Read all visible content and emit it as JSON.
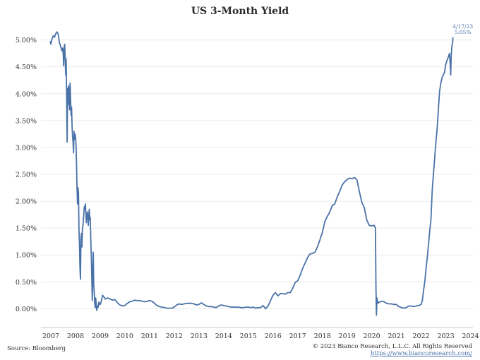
{
  "chart_data": {
    "type": "line",
    "title": "US 3-Month Yield",
    "xlabel": "",
    "ylabel": "",
    "x_ticks": [
      "2007",
      "2008",
      "2009",
      "2010",
      "2011",
      "2012",
      "2013",
      "2014",
      "2015",
      "2016",
      "2017",
      "2018",
      "2019",
      "2020",
      "2021",
      "2022",
      "2023",
      "2024"
    ],
    "y_ticks": [
      "0.00%",
      "0.50%",
      "1.00%",
      "1.50%",
      "2.00%",
      "2.50%",
      "3.00%",
      "3.50%",
      "4.00%",
      "4.50%",
      "5.00%"
    ],
    "xlim": [
      2006.6,
      2024.1
    ],
    "ylim": [
      -0.35,
      5.35
    ],
    "grid": "horizontal",
    "line_color": "#4a72a8",
    "annotation": {
      "date": "4/17/23",
      "value": "5.05%"
    },
    "series": [
      {
        "points": [
          [
            2006.98,
            4.98
          ],
          [
            2007.0,
            4.92
          ],
          [
            2007.05,
            5.02
          ],
          [
            2007.1,
            5.08
          ],
          [
            2007.15,
            5.05
          ],
          [
            2007.2,
            5.12
          ],
          [
            2007.25,
            5.15
          ],
          [
            2007.3,
            5.1
          ],
          [
            2007.35,
            4.95
          ],
          [
            2007.4,
            4.88
          ],
          [
            2007.45,
            4.8
          ],
          [
            2007.48,
            4.85
          ],
          [
            2007.5,
            4.75
          ],
          [
            2007.52,
            4.52
          ],
          [
            2007.54,
            4.85
          ],
          [
            2007.56,
            4.92
          ],
          [
            2007.58,
            4.7
          ],
          [
            2007.6,
            4.35
          ],
          [
            2007.62,
            4.65
          ],
          [
            2007.64,
            3.95
          ],
          [
            2007.66,
            3.1
          ],
          [
            2007.68,
            4.1
          ],
          [
            2007.7,
            3.8
          ],
          [
            2007.72,
            4.15
          ],
          [
            2007.74,
            3.95
          ],
          [
            2007.76,
            3.7
          ],
          [
            2007.78,
            4.2
          ],
          [
            2007.8,
            3.9
          ],
          [
            2007.82,
            3.6
          ],
          [
            2007.84,
            3.75
          ],
          [
            2007.86,
            3.4
          ],
          [
            2007.88,
            3.2
          ],
          [
            2007.9,
            3.1
          ],
          [
            2007.92,
            2.9
          ],
          [
            2007.94,
            3.3
          ],
          [
            2007.96,
            3.15
          ],
          [
            2007.98,
            3.25
          ],
          [
            2008.0,
            3.2
          ],
          [
            2008.02,
            3.05
          ],
          [
            2008.04,
            2.7
          ],
          [
            2008.06,
            2.25
          ],
          [
            2008.08,
            1.95
          ],
          [
            2008.1,
            2.25
          ],
          [
            2008.12,
            2.15
          ],
          [
            2008.14,
            1.45
          ],
          [
            2008.16,
            1.2
          ],
          [
            2008.18,
            0.75
          ],
          [
            2008.2,
            0.55
          ],
          [
            2008.22,
            1.3
          ],
          [
            2008.24,
            1.4
          ],
          [
            2008.26,
            1.15
          ],
          [
            2008.28,
            1.5
          ],
          [
            2008.3,
            1.55
          ],
          [
            2008.32,
            1.65
          ],
          [
            2008.34,
            1.8
          ],
          [
            2008.36,
            1.9
          ],
          [
            2008.38,
            1.85
          ],
          [
            2008.4,
            1.95
          ],
          [
            2008.42,
            1.8
          ],
          [
            2008.44,
            1.6
          ],
          [
            2008.46,
            1.75
          ],
          [
            2008.48,
            1.8
          ],
          [
            2008.5,
            1.7
          ],
          [
            2008.52,
            1.55
          ],
          [
            2008.54,
            1.75
          ],
          [
            2008.56,
            1.85
          ],
          [
            2008.58,
            1.65
          ],
          [
            2008.6,
            1.7
          ],
          [
            2008.62,
            1.3
          ],
          [
            2008.64,
            1.0
          ],
          [
            2008.66,
            0.6
          ],
          [
            2008.68,
            0.15
          ],
          [
            2008.7,
            0.7
          ],
          [
            2008.72,
            1.05
          ],
          [
            2008.74,
            0.45
          ],
          [
            2008.76,
            0.3
          ],
          [
            2008.78,
            0.1
          ],
          [
            2008.8,
            0.02
          ],
          [
            2008.82,
            0.2
          ],
          [
            2008.84,
            0.08
          ],
          [
            2008.86,
            -0.03
          ],
          [
            2008.88,
            0.01
          ],
          [
            2008.9,
            0.05
          ],
          [
            2008.92,
            0.03
          ],
          [
            2008.94,
            0.12
          ],
          [
            2008.96,
            0.08
          ],
          [
            2008.98,
            0.1
          ],
          [
            2009.0,
            0.08
          ],
          [
            2009.05,
            0.15
          ],
          [
            2009.1,
            0.25
          ],
          [
            2009.15,
            0.22
          ],
          [
            2009.2,
            0.18
          ],
          [
            2009.3,
            0.2
          ],
          [
            2009.4,
            0.18
          ],
          [
            2009.5,
            0.16
          ],
          [
            2009.6,
            0.17
          ],
          [
            2009.7,
            0.11
          ],
          [
            2009.8,
            0.07
          ],
          [
            2009.9,
            0.05
          ],
          [
            2010.0,
            0.06
          ],
          [
            2010.1,
            0.1
          ],
          [
            2010.2,
            0.13
          ],
          [
            2010.3,
            0.14
          ],
          [
            2010.4,
            0.16
          ],
          [
            2010.5,
            0.15
          ],
          [
            2010.6,
            0.15
          ],
          [
            2010.7,
            0.14
          ],
          [
            2010.8,
            0.13
          ],
          [
            2010.9,
            0.14
          ],
          [
            2011.0,
            0.15
          ],
          [
            2011.1,
            0.14
          ],
          [
            2011.2,
            0.1
          ],
          [
            2011.3,
            0.06
          ],
          [
            2011.4,
            0.04
          ],
          [
            2011.5,
            0.03
          ],
          [
            2011.6,
            0.02
          ],
          [
            2011.7,
            0.01
          ],
          [
            2011.8,
            0.01
          ],
          [
            2011.9,
            0.01
          ],
          [
            2012.0,
            0.03
          ],
          [
            2012.1,
            0.07
          ],
          [
            2012.2,
            0.09
          ],
          [
            2012.3,
            0.08
          ],
          [
            2012.4,
            0.09
          ],
          [
            2012.5,
            0.1
          ],
          [
            2012.6,
            0.1
          ],
          [
            2012.7,
            0.1
          ],
          [
            2012.8,
            0.09
          ],
          [
            2012.9,
            0.07
          ],
          [
            2013.0,
            0.08
          ],
          [
            2013.1,
            0.11
          ],
          [
            2013.2,
            0.08
          ],
          [
            2013.3,
            0.05
          ],
          [
            2013.4,
            0.04
          ],
          [
            2013.5,
            0.04
          ],
          [
            2013.6,
            0.03
          ],
          [
            2013.7,
            0.02
          ],
          [
            2013.8,
            0.05
          ],
          [
            2013.9,
            0.07
          ],
          [
            2014.0,
            0.06
          ],
          [
            2014.1,
            0.05
          ],
          [
            2014.2,
            0.04
          ],
          [
            2014.3,
            0.03
          ],
          [
            2014.4,
            0.03
          ],
          [
            2014.5,
            0.03
          ],
          [
            2014.6,
            0.03
          ],
          [
            2014.7,
            0.02
          ],
          [
            2014.8,
            0.02
          ],
          [
            2014.9,
            0.03
          ],
          [
            2015.0,
            0.03
          ],
          [
            2015.1,
            0.02
          ],
          [
            2015.2,
            0.03
          ],
          [
            2015.3,
            0.01
          ],
          [
            2015.4,
            0.02
          ],
          [
            2015.5,
            0.02
          ],
          [
            2015.6,
            0.06
          ],
          [
            2015.7,
            0.0
          ],
          [
            2015.8,
            0.05
          ],
          [
            2015.9,
            0.15
          ],
          [
            2016.0,
            0.25
          ],
          [
            2016.1,
            0.3
          ],
          [
            2016.2,
            0.24
          ],
          [
            2016.3,
            0.28
          ],
          [
            2016.4,
            0.28
          ],
          [
            2016.5,
            0.27
          ],
          [
            2016.6,
            0.3
          ],
          [
            2016.7,
            0.3
          ],
          [
            2016.8,
            0.38
          ],
          [
            2016.9,
            0.49
          ],
          [
            2017.0,
            0.52
          ],
          [
            2017.1,
            0.62
          ],
          [
            2017.2,
            0.75
          ],
          [
            2017.3,
            0.85
          ],
          [
            2017.4,
            0.95
          ],
          [
            2017.5,
            1.02
          ],
          [
            2017.6,
            1.03
          ],
          [
            2017.7,
            1.05
          ],
          [
            2017.8,
            1.15
          ],
          [
            2017.9,
            1.28
          ],
          [
            2018.0,
            1.42
          ],
          [
            2018.1,
            1.62
          ],
          [
            2018.2,
            1.72
          ],
          [
            2018.3,
            1.8
          ],
          [
            2018.4,
            1.92
          ],
          [
            2018.5,
            1.95
          ],
          [
            2018.6,
            2.08
          ],
          [
            2018.7,
            2.18
          ],
          [
            2018.8,
            2.3
          ],
          [
            2018.9,
            2.36
          ],
          [
            2019.0,
            2.4
          ],
          [
            2019.1,
            2.43
          ],
          [
            2019.2,
            2.42
          ],
          [
            2019.3,
            2.44
          ],
          [
            2019.4,
            2.4
          ],
          [
            2019.5,
            2.18
          ],
          [
            2019.6,
            1.98
          ],
          [
            2019.7,
            1.88
          ],
          [
            2019.8,
            1.65
          ],
          [
            2019.9,
            1.55
          ],
          [
            2020.0,
            1.54
          ],
          [
            2020.1,
            1.55
          ],
          [
            2020.15,
            1.5
          ],
          [
            2020.17,
            0.4
          ],
          [
            2020.19,
            -0.12
          ],
          [
            2020.21,
            0.2
          ],
          [
            2020.25,
            0.1
          ],
          [
            2020.3,
            0.12
          ],
          [
            2020.4,
            0.14
          ],
          [
            2020.5,
            0.13
          ],
          [
            2020.6,
            0.1
          ],
          [
            2020.7,
            0.09
          ],
          [
            2020.8,
            0.09
          ],
          [
            2020.9,
            0.08
          ],
          [
            2021.0,
            0.08
          ],
          [
            2021.1,
            0.04
          ],
          [
            2021.2,
            0.02
          ],
          [
            2021.3,
            0.01
          ],
          [
            2021.4,
            0.02
          ],
          [
            2021.5,
            0.05
          ],
          [
            2021.6,
            0.05
          ],
          [
            2021.7,
            0.04
          ],
          [
            2021.8,
            0.05
          ],
          [
            2021.9,
            0.06
          ],
          [
            2022.0,
            0.08
          ],
          [
            2022.05,
            0.15
          ],
          [
            2022.1,
            0.35
          ],
          [
            2022.15,
            0.5
          ],
          [
            2022.2,
            0.75
          ],
          [
            2022.25,
            0.95
          ],
          [
            2022.3,
            1.2
          ],
          [
            2022.35,
            1.45
          ],
          [
            2022.4,
            1.65
          ],
          [
            2022.45,
            2.2
          ],
          [
            2022.5,
            2.5
          ],
          [
            2022.55,
            2.8
          ],
          [
            2022.6,
            3.1
          ],
          [
            2022.65,
            3.35
          ],
          [
            2022.7,
            3.7
          ],
          [
            2022.75,
            4.05
          ],
          [
            2022.8,
            4.2
          ],
          [
            2022.85,
            4.3
          ],
          [
            2022.9,
            4.35
          ],
          [
            2022.95,
            4.4
          ],
          [
            2023.0,
            4.55
          ],
          [
            2023.05,
            4.62
          ],
          [
            2023.1,
            4.68
          ],
          [
            2023.15,
            4.75
          ],
          [
            2023.18,
            4.55
          ],
          [
            2023.2,
            4.35
          ],
          [
            2023.22,
            4.7
          ],
          [
            2023.25,
            4.9
          ],
          [
            2023.28,
            4.95
          ],
          [
            2023.29,
            5.05
          ]
        ]
      }
    ]
  },
  "footer": {
    "source": "Source: Bloomberg",
    "copyright": "© 2023 Bianco Research, L.L.C. All Rights Reserved",
    "website": "https://www.biancoresearch.com/"
  }
}
